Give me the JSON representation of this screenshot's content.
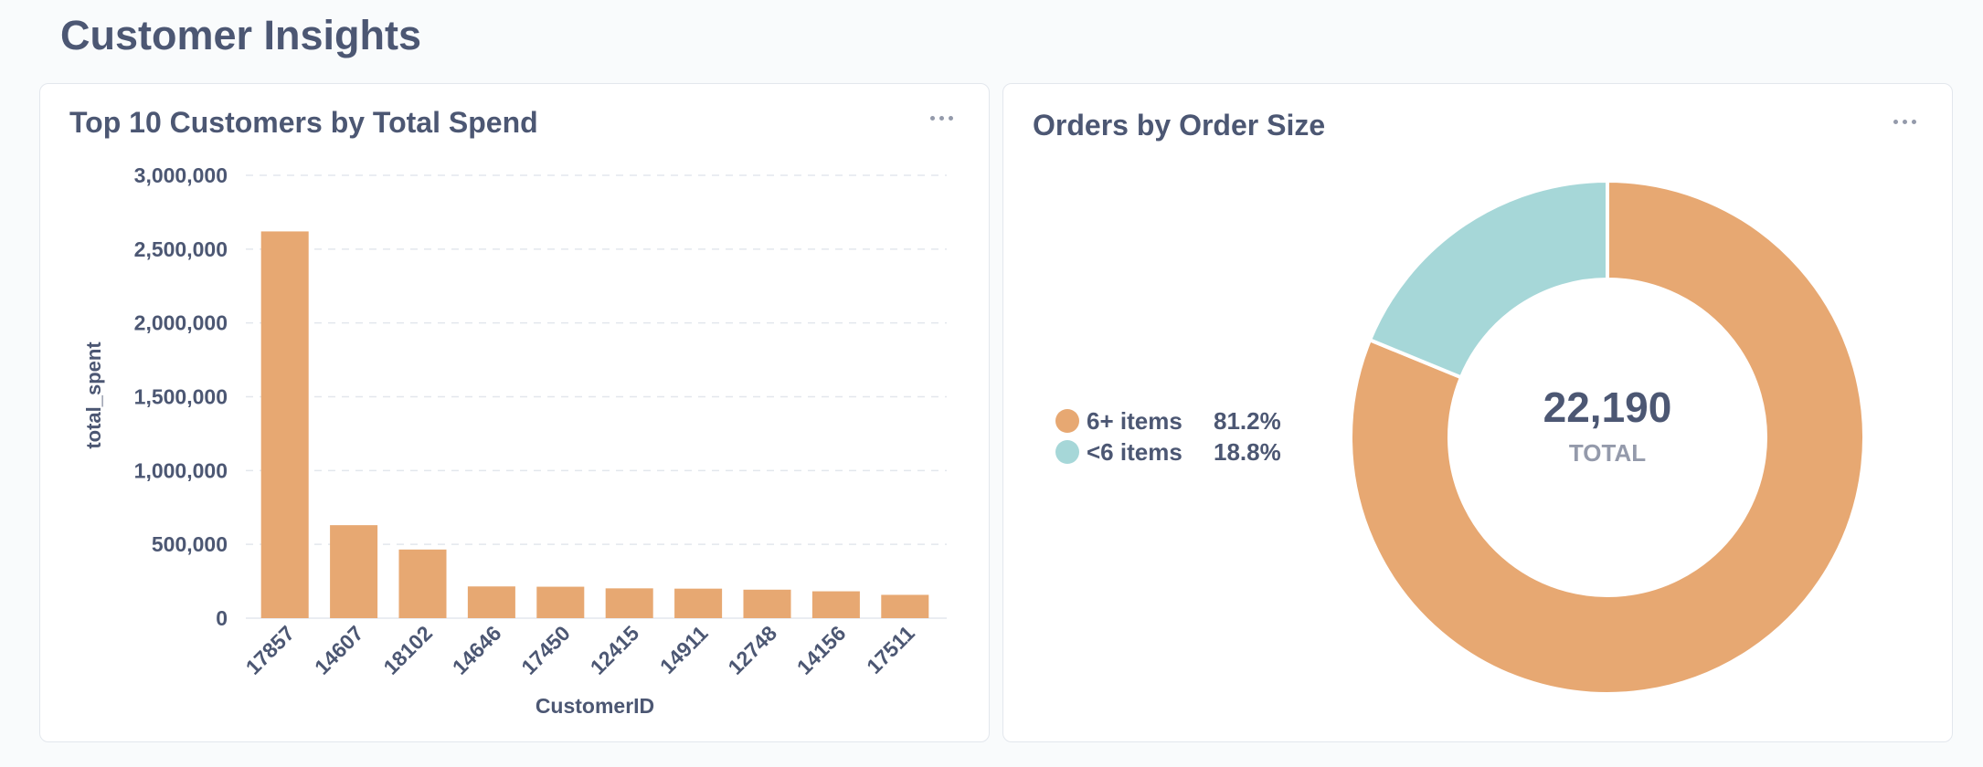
{
  "page": {
    "title": "Customer Insights"
  },
  "cards": {
    "spend": {
      "title": "Top 10 Customers by Total Spend",
      "menu_icon": "ellipsis-icon"
    },
    "orders": {
      "title": "Orders by Order Size",
      "menu_icon": "ellipsis-icon"
    }
  },
  "colors": {
    "bar": "#e7a872",
    "slice_large": "#e7a872",
    "slice_small": "#a6d7d8",
    "grid": "#e3e7ed",
    "text": "#4c5773",
    "muted": "#949aab"
  },
  "chart_data": [
    {
      "type": "bar",
      "title": "Top 10 Customers by Total Spend",
      "xlabel": "CustomerID",
      "ylabel": "total_spent",
      "ylim": [
        0,
        3000000
      ],
      "yticks": [
        0,
        500000,
        1000000,
        1500000,
        2000000,
        2500000,
        3000000
      ],
      "ytick_labels": [
        "0",
        "500,000",
        "1,000,000",
        "1,500,000",
        "2,000,000",
        "2,500,000",
        "3,000,000"
      ],
      "grid": true,
      "categories": [
        "17857",
        "14607",
        "18102",
        "14646",
        "17450",
        "12415",
        "14911",
        "12748",
        "14156",
        "17511"
      ],
      "values": [
        2620000,
        630000,
        465000,
        215000,
        213000,
        202000,
        200000,
        193000,
        182000,
        158000
      ]
    },
    {
      "type": "pie",
      "title": "Orders by Order Size",
      "donut": true,
      "center_value": "22,190",
      "center_label": "TOTAL",
      "legend_position": "left",
      "slices": [
        {
          "label": "6+ items",
          "value": 81.2,
          "percent_label": "81.2%"
        },
        {
          "label": "<6 items",
          "value": 18.8,
          "percent_label": "18.8%"
        }
      ]
    }
  ]
}
